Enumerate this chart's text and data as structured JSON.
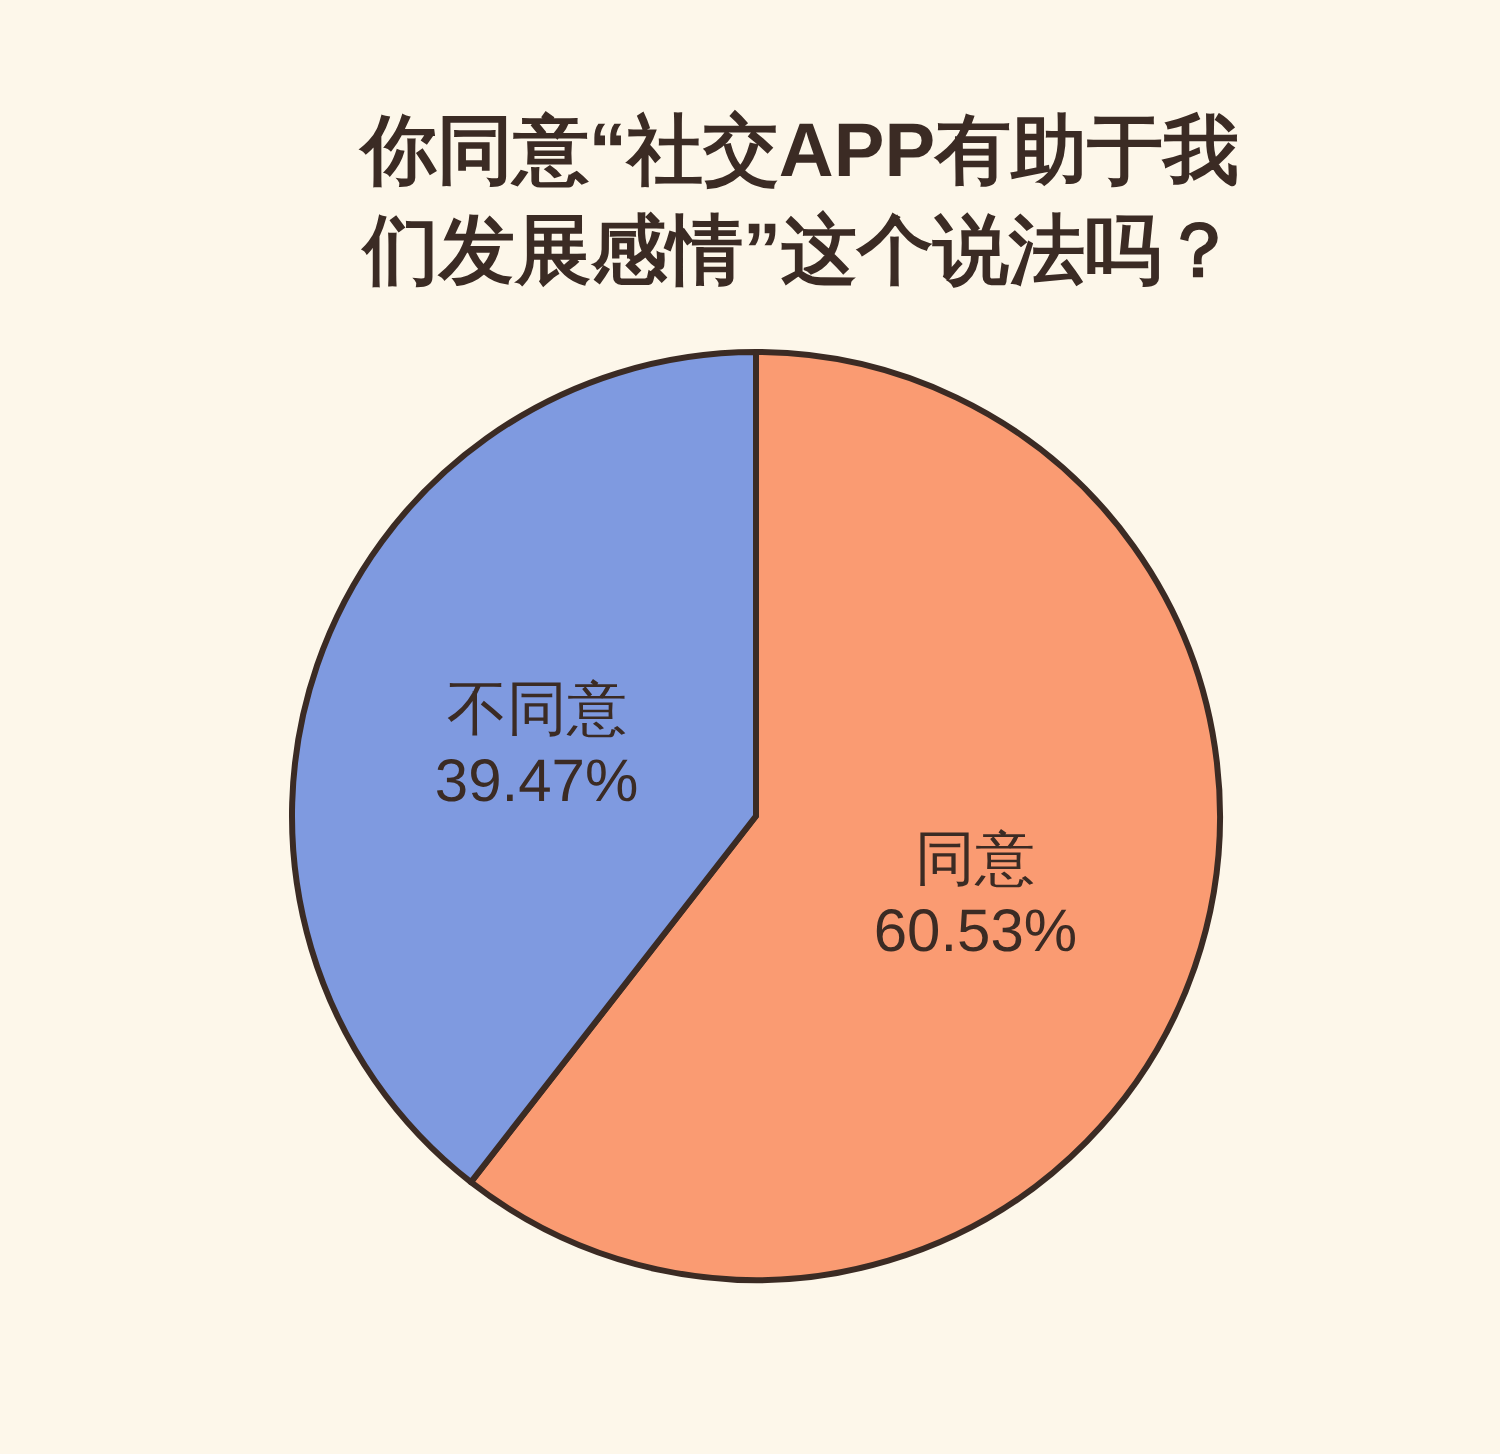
{
  "chart_data": {
    "type": "pie",
    "title": "你同意“社交APP有助于我们发展感情”这个说法吗？",
    "categories": [
      "同意",
      "不同意"
    ],
    "values": [
      60.53,
      39.47
    ],
    "value_labels": [
      "60.53%",
      "39.47%"
    ],
    "colors": [
      "#fa9b72",
      "#7f9ae0"
    ]
  }
}
